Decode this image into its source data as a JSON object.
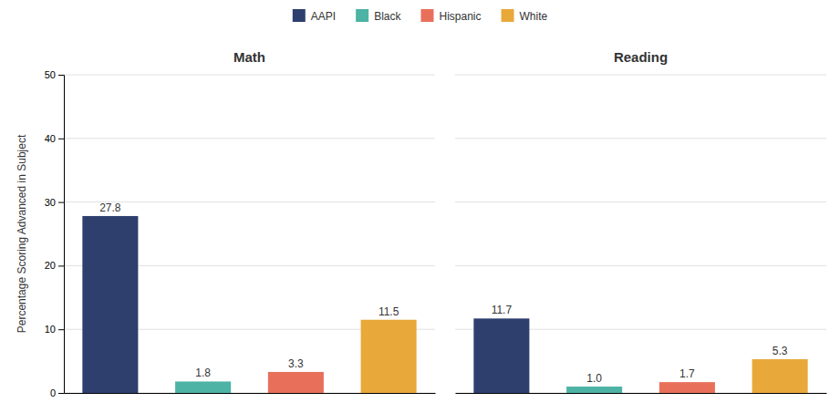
{
  "chart_data": [
    {
      "type": "bar",
      "title": "Math",
      "categories": [
        "AAPI",
        "Black",
        "Hispanic",
        "White"
      ],
      "values": [
        27.8,
        1.8,
        3.3,
        11.5
      ],
      "colors": [
        "#2e3f6e",
        "#4db3a4",
        "#e8705a",
        "#e8a93a"
      ],
      "ylabel": "Percentage Scoring Advanced in Subject",
      "ylim": [
        0,
        50
      ],
      "yticks": [
        0,
        10,
        20,
        30,
        40,
        50
      ],
      "grid": true,
      "data_labels": true,
      "tick_labels": "y",
      "legend": "top"
    },
    {
      "type": "bar",
      "title": "Reading",
      "categories": [
        "AAPI",
        "Black",
        "Hispanic",
        "White"
      ],
      "values": [
        11.7,
        1.0,
        1.7,
        5.3
      ],
      "value_labels": [
        "11.7",
        "1.0",
        "1.7",
        "5.3"
      ],
      "colors": [
        "#2e3f6e",
        "#4db3a4",
        "#e8705a",
        "#e8a93a"
      ],
      "ylim": [
        0,
        50
      ],
      "yticks": [
        0,
        10,
        20,
        30,
        40,
        50
      ],
      "grid": true,
      "data_labels": true,
      "tick_labels": false
    }
  ]
}
